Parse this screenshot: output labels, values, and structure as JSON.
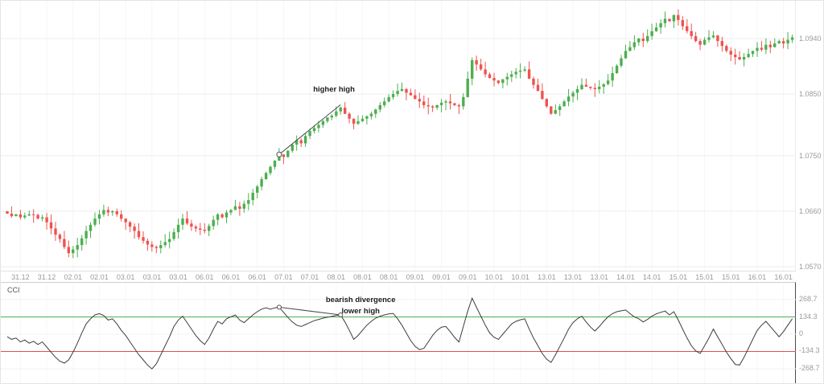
{
  "indicator_panel_title": "CCI",
  "colors": {
    "up": "#4caf50",
    "down": "#ef5350",
    "cci_line": "#3c3c3c",
    "upper_band": "#4caf50",
    "lower_band": "#d9534f",
    "grid": "#ededed",
    "axis_text": "#9a9a9a"
  },
  "chart_data": [
    {
      "type": "candlestick",
      "title": "",
      "x_tick_labels": [
        "31.12",
        "31.12",
        "02.01",
        "02.01",
        "03.01",
        "03.01",
        "03.01",
        "06.01",
        "06.01",
        "06.01",
        "07.01",
        "07.01",
        "08.01",
        "08.01",
        "08.01",
        "09.01",
        "09.01",
        "09.01",
        "10.01",
        "10.01",
        "13.01",
        "13.01",
        "13.01",
        "14.01",
        "14.01",
        "15.01",
        "15.01",
        "15.01",
        "16.01",
        "16.01"
      ],
      "y_tick_labels": [
        "1.0940",
        "1.0850",
        "1.0750",
        "1.0660",
        "1.0570"
      ],
      "y_tick_values": [
        1.094,
        1.085,
        1.075,
        1.066,
        1.057
      ],
      "ylim": [
        1.0562,
        1.1001
      ],
      "closes": [
        1.0656,
        1.0652,
        1.0655,
        1.065,
        1.0653,
        1.0655,
        1.0654,
        1.0648,
        1.065,
        1.0642,
        1.0632,
        1.0622,
        1.0615,
        1.0602,
        1.0592,
        1.0598,
        1.0605,
        1.0616,
        1.0628,
        1.0638,
        1.0648,
        1.0655,
        1.0662,
        1.0658,
        1.066,
        1.0655,
        1.0648,
        1.0642,
        1.0635,
        1.0628,
        1.0618,
        1.0612,
        1.0606,
        1.0602,
        1.06,
        1.0605,
        1.061,
        1.0615,
        1.0626,
        1.0638,
        1.0648,
        1.064,
        1.0635,
        1.0632,
        1.063,
        1.0628,
        1.0636,
        1.0646,
        1.0655,
        1.065,
        1.0658,
        1.0662,
        1.0668,
        1.0664,
        1.0672,
        1.0678,
        1.069,
        1.07,
        1.0712,
        1.0722,
        1.0732,
        1.0742,
        1.0752,
        1.0748,
        1.0758,
        1.0768,
        1.0775,
        1.077,
        1.0782,
        1.079,
        1.0795,
        1.08,
        1.0806,
        1.0812,
        1.0815,
        1.0822,
        1.0828,
        1.0818,
        1.081,
        1.0802,
        1.0806,
        1.081,
        1.0814,
        1.0818,
        1.0825,
        1.0832,
        1.0838,
        1.0845,
        1.085,
        1.0855,
        1.0858,
        1.0852,
        1.0848,
        1.0842,
        1.0838,
        1.0832,
        1.083,
        1.0828,
        1.0832,
        1.0836,
        1.0838,
        1.0835,
        1.0832,
        1.083,
        1.0845,
        1.0875,
        1.0905,
        1.0898,
        1.089,
        1.0882,
        1.0876,
        1.0872,
        1.0868,
        1.0874,
        1.0878,
        1.0882,
        1.0886,
        1.0888,
        1.089,
        1.0875,
        1.0865,
        1.0855,
        1.0842,
        1.083,
        1.0818,
        1.0824,
        1.083,
        1.0838,
        1.0846,
        1.0852,
        1.0858,
        1.0865,
        1.0862,
        1.086,
        1.0858,
        1.0862,
        1.0866,
        1.0872,
        1.0884,
        1.0896,
        1.0908,
        1.092,
        1.0926,
        1.0934,
        1.094,
        1.0936,
        1.0944,
        1.0952,
        1.0958,
        1.0965,
        1.0972,
        1.0968,
        1.0978,
        1.097,
        1.096,
        1.0952,
        1.0944,
        1.0936,
        1.093,
        1.0938,
        1.0942,
        1.0945,
        1.0936,
        1.0928,
        1.092,
        1.0914,
        1.091,
        1.0906,
        1.091,
        1.0915,
        1.092,
        1.0925,
        1.0922,
        1.093,
        1.0926,
        1.0932,
        1.0936,
        1.0932,
        1.0938,
        1.0942
      ],
      "annotations": [
        {
          "type": "trendline",
          "label": "higher high",
          "from_index": 62,
          "to_index": 76
        }
      ]
    },
    {
      "type": "line",
      "label": "CCI",
      "y_tick_labels": [
        "268.7",
        "134.3",
        "0",
        "-134.3",
        "-268.7"
      ],
      "y_tick_values": [
        268.7,
        134.3,
        0,
        -134.3,
        -268.7
      ],
      "levels": [
        {
          "value": 134.3,
          "color": "#4caf50"
        },
        {
          "value": -134.3,
          "color": "#d9534f"
        }
      ],
      "values": [
        -20,
        -40,
        -30,
        -60,
        -45,
        -70,
        -55,
        -80,
        -60,
        -100,
        -140,
        -180,
        -210,
        -225,
        -200,
        -140,
        -70,
        10,
        80,
        120,
        150,
        160,
        145,
        110,
        120,
        80,
        30,
        -10,
        -60,
        -110,
        -160,
        -200,
        -240,
        -270,
        -230,
        -160,
        -90,
        -20,
        60,
        110,
        140,
        90,
        40,
        -10,
        -50,
        -80,
        -30,
        40,
        100,
        80,
        120,
        135,
        150,
        110,
        90,
        120,
        150,
        175,
        195,
        205,
        195,
        205,
        210,
        170,
        130,
        95,
        70,
        60,
        75,
        90,
        105,
        115,
        125,
        132,
        138,
        145,
        150,
        95,
        30,
        -40,
        -10,
        30,
        70,
        100,
        125,
        140,
        150,
        158,
        162,
        120,
        70,
        10,
        -50,
        -95,
        -120,
        -110,
        -60,
        -10,
        30,
        55,
        60,
        20,
        -25,
        -60,
        60,
        180,
        280,
        210,
        140,
        70,
        10,
        -25,
        -40,
        0,
        40,
        80,
        100,
        112,
        120,
        40,
        -30,
        -90,
        -150,
        -195,
        -220,
        -160,
        -95,
        -30,
        40,
        90,
        120,
        140,
        95,
        55,
        25,
        60,
        100,
        135,
        160,
        175,
        182,
        188,
        160,
        135,
        120,
        95,
        115,
        140,
        158,
        170,
        180,
        150,
        175,
        110,
        40,
        -30,
        -90,
        -130,
        -150,
        -90,
        -30,
        40,
        -20,
        -80,
        -140,
        -190,
        -235,
        -240,
        -180,
        -110,
        -40,
        30,
        70,
        100,
        60,
        20,
        -20,
        20,
        70,
        120
      ],
      "annotations": [
        {
          "type": "trendline",
          "labels": [
            "bearish divergence",
            "lower high"
          ],
          "from_index": 62,
          "to_index": 76
        }
      ]
    }
  ]
}
